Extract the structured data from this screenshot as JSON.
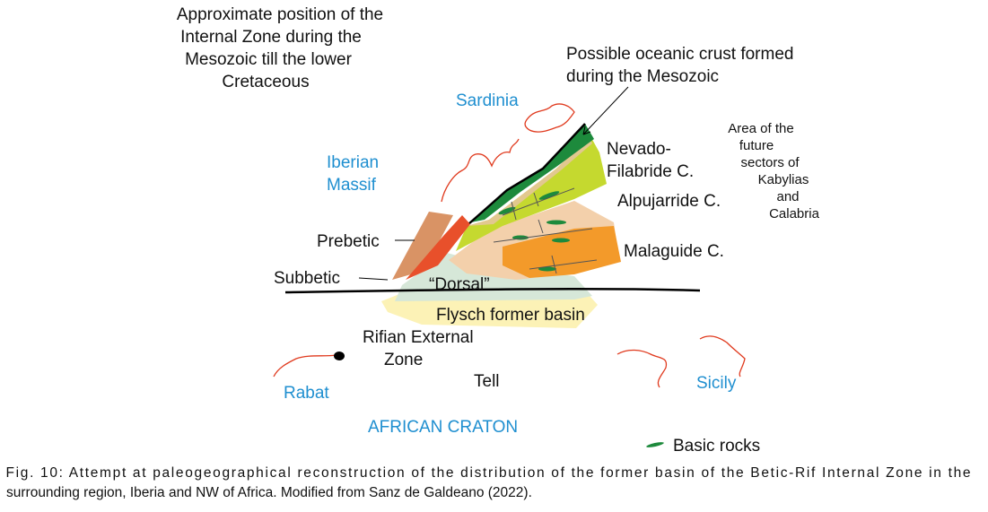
{
  "labels": {
    "internal_zone": [
      "Approximate position of the",
      "Internal Zone during the",
      "Mesozoic till the lower",
      "Cretaceous"
    ],
    "oceanic_crust": [
      "Possible oceanic crust formed",
      "during the Mesozoic"
    ],
    "sardinia": [
      "Sardinia"
    ],
    "iberian_massif": [
      "Iberian",
      "Massif"
    ],
    "nevado": [
      "Nevado-",
      "Filabride C."
    ],
    "kabylias": [
      "Area of the",
      "future",
      "sectors of",
      "Kabylias",
      "and",
      "Calabria"
    ],
    "alpujarride": [
      "Alpujarride C."
    ],
    "prebetic": [
      "Prebetic"
    ],
    "malaguide": [
      "Malaguide C."
    ],
    "subbetic": [
      "Subbetic"
    ],
    "dorsal": [
      "“Dorsal”"
    ],
    "flysch": [
      "Flysch former basin"
    ],
    "rifian": [
      "Rifian External",
      "Zone"
    ],
    "rabat": [
      "Rabat"
    ],
    "tell": [
      "Tell"
    ],
    "sicily": [
      "Sicily"
    ],
    "craton": [
      "AFRICAN CRATON"
    ],
    "basic_rocks": [
      "Basic rocks"
    ]
  },
  "caption": [
    "Fig. 10: Attempt at paleogeographical reconstruction of the distribution of the former basin of the Betic-Rif Internal Zone in the",
    "surrounding region, Iberia and NW of Africa. Modified from Sanz de Galdeano (2022)."
  ]
}
